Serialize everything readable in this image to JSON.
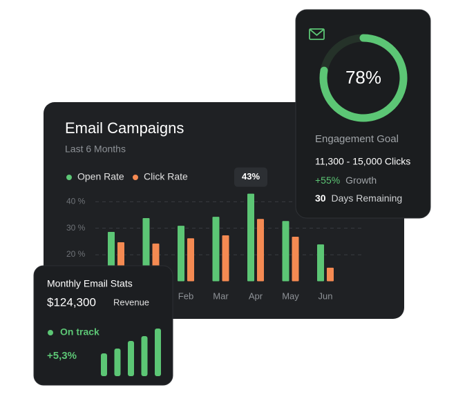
{
  "chart_data": [
    {
      "type": "bar",
      "title": "Email Campaigns",
      "subtitle": "Last 6 Months",
      "categories": [
        null,
        null,
        "Feb",
        "Mar",
        "Apr",
        "May",
        "Jun"
      ],
      "series": [
        {
          "name": "Open Rate",
          "color": "#5cc675",
          "values": [
            28.6,
            33.8,
            30.9,
            34.3,
            43,
            32.7,
            23.9
          ],
          "value_labels": [
            null,
            null,
            null,
            null,
            "43%",
            null,
            null
          ]
        },
        {
          "name": "Click Rate",
          "color": "#f58a52",
          "values": [
            24.7,
            24.2,
            26.2,
            27.3,
            33.5,
            26.8,
            15.1
          ]
        }
      ],
      "ylim": [
        10,
        45
      ],
      "yticks": [
        {
          "value": 20,
          "label": "20 %"
        },
        {
          "value": 30,
          "label": "30 %"
        },
        {
          "value": 40,
          "label": "40 %"
        }
      ],
      "grid": true,
      "legend": "top-left"
    },
    {
      "type": "donut",
      "title": "Engagement Goal",
      "value": 78,
      "value_label": "78%",
      "color": "#5cc675"
    },
    {
      "type": "bar",
      "title": "Monthly Email Stats",
      "values": [
        33,
        40,
        51,
        58,
        69
      ],
      "color": "#5cc675"
    }
  ],
  "engagement": {
    "range": "11,300 - 15,000 Clicks",
    "growth": "+55%",
    "growth_label": "Growth",
    "days": "30",
    "days_label": "Days Remaining"
  },
  "stats": {
    "revenue": "$124,300",
    "revenue_label": "Revenue",
    "status": "On track",
    "change": "+5,3%"
  }
}
